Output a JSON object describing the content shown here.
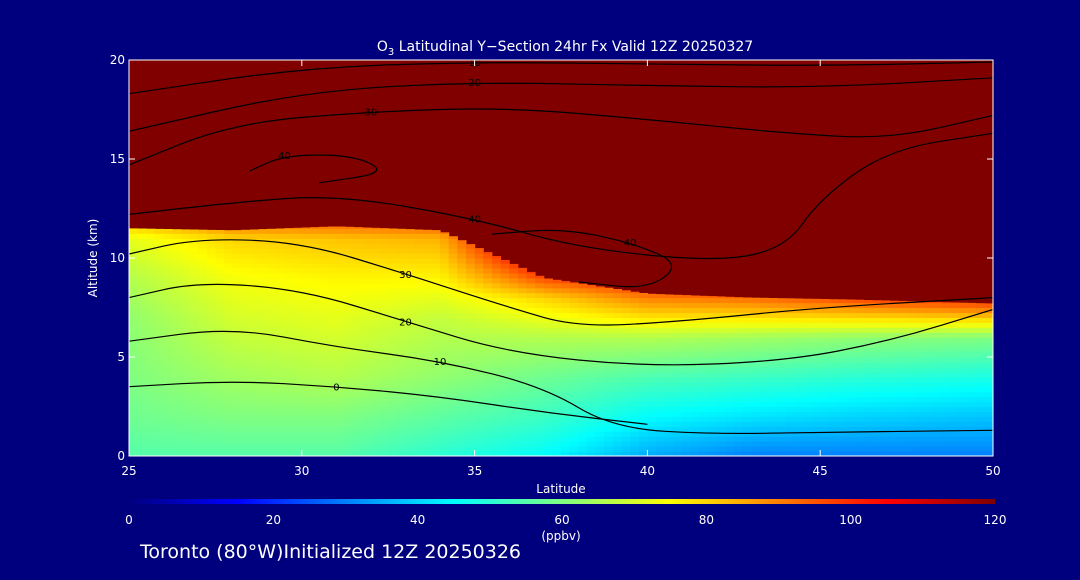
{
  "title": "O3 Latitudinal Y-Section 24hr  Fx Valid 12Z 20250327",
  "title_parts": {
    "main": "O",
    "sub": "3",
    "rest": " Latitudinal Y−Section 24hr  Fx Valid 12Z 20250327"
  },
  "footer": "Toronto (80°W)Initialized 12Z 20250326",
  "colors": {
    "background": "#00007f",
    "text": "#ffffff",
    "contour": "#000000",
    "plot_frame": "#ffffff"
  },
  "chart_data": {
    "type": "heatmap",
    "title": "O3 Latitudinal Y-Section 24hr  Fx Valid 12Z 20250327",
    "xlabel": "Latitude",
    "ylabel": "Altitude (km)",
    "xlim": [
      25,
      50
    ],
    "ylim": [
      0,
      20
    ],
    "x_ticks": [
      25,
      30,
      35,
      40,
      45,
      50
    ],
    "y_ticks": [
      0,
      5,
      10,
      15,
      20
    ],
    "colorbar": {
      "min": 0,
      "max": 120,
      "ticks": [
        0,
        20,
        40,
        60,
        80,
        100,
        120
      ],
      "unit": "(ppbv)",
      "colormap": [
        "#00007f",
        "#0000ff",
        "#0080ff",
        "#00ffff",
        "#80ff80",
        "#ffff00",
        "#ff8000",
        "#ff0000",
        "#800000"
      ]
    },
    "surface_ozone_field": {
      "x": [
        25,
        28,
        31,
        34,
        37,
        40,
        43,
        46,
        50
      ],
      "columns": [
        {
          "lat": 25,
          "top_km": 11.5,
          "levels": [
            [
              0,
              55
            ],
            [
              2,
              58
            ],
            [
              4,
              60
            ],
            [
              7,
              62
            ],
            [
              9,
              66
            ],
            [
              11,
              72
            ]
          ]
        },
        {
          "lat": 28,
          "top_km": 11.4,
          "levels": [
            [
              0,
              55
            ],
            [
              2,
              60
            ],
            [
              4,
              64
            ],
            [
              7,
              70
            ],
            [
              9,
              74
            ],
            [
              11,
              80
            ]
          ]
        },
        {
          "lat": 31,
          "top_km": 11.6,
          "levels": [
            [
              0,
              55
            ],
            [
              2,
              60
            ],
            [
              4,
              66
            ],
            [
              7,
              72
            ],
            [
              9,
              76
            ],
            [
              11,
              82
            ]
          ]
        },
        {
          "lat": 34,
          "top_km": 11.4,
          "levels": [
            [
              0,
              50
            ],
            [
              2,
              56
            ],
            [
              4,
              62
            ],
            [
              7,
              68
            ],
            [
              9,
              76
            ],
            [
              11,
              84
            ]
          ]
        },
        {
          "lat": 37,
          "top_km": 9.0,
          "levels": [
            [
              0,
              45
            ],
            [
              2,
              52
            ],
            [
              4,
              58
            ],
            [
              6,
              66
            ],
            [
              8,
              80
            ],
            [
              9,
              96
            ]
          ]
        },
        {
          "lat": 40,
          "top_km": 8.2,
          "levels": [
            [
              0,
              35
            ],
            [
              2,
              45
            ],
            [
              4,
              54
            ],
            [
              6,
              66
            ],
            [
              8,
              90
            ]
          ]
        },
        {
          "lat": 43,
          "top_km": 8.0,
          "levels": [
            [
              0,
              30
            ],
            [
              2,
              42
            ],
            [
              4,
              52
            ],
            [
              6,
              64
            ],
            [
              8,
              92
            ]
          ]
        },
        {
          "lat": 46,
          "top_km": 7.9,
          "levels": [
            [
              0,
              30
            ],
            [
              2,
              40
            ],
            [
              4,
              50
            ],
            [
              6,
              62
            ],
            [
              7.9,
              95
            ]
          ]
        },
        {
          "lat": 50,
          "top_km": 7.7,
          "levels": [
            [
              0,
              30
            ],
            [
              2,
              38
            ],
            [
              4,
              48
            ],
            [
              6,
              60
            ],
            [
              7.7,
              96
            ]
          ]
        }
      ]
    },
    "contours": [
      {
        "label": "0",
        "points": [
          [
            25,
            3.5
          ],
          [
            28,
            3.8
          ],
          [
            31,
            3.5
          ],
          [
            34,
            3.0
          ],
          [
            37,
            2.2
          ],
          [
            40,
            1.6
          ]
        ]
      },
      {
        "label": "10",
        "points": [
          [
            25,
            5.8
          ],
          [
            28,
            6.5
          ],
          [
            31,
            5.5
          ],
          [
            34,
            4.8
          ],
          [
            37,
            3.5
          ],
          [
            39,
            1.4
          ],
          [
            42,
            1.1
          ],
          [
            45,
            1.2
          ],
          [
            50,
            1.3
          ]
        ]
      },
      {
        "label": "20",
        "points": [
          [
            25,
            8.0
          ],
          [
            27,
            8.8
          ],
          [
            30,
            8.4
          ],
          [
            33,
            6.8
          ],
          [
            36,
            5.2
          ],
          [
            40,
            4.5
          ],
          [
            44,
            4.8
          ],
          [
            47,
            5.8
          ],
          [
            50,
            7.4
          ]
        ]
      },
      {
        "label": "30",
        "points": [
          [
            25,
            10.2
          ],
          [
            27,
            11.0
          ],
          [
            30,
            10.8
          ],
          [
            33,
            9.2
          ],
          [
            36,
            7.5
          ],
          [
            38,
            6.5
          ],
          [
            41,
            6.8
          ],
          [
            45,
            7.5
          ],
          [
            50,
            8.0
          ]
        ]
      },
      {
        "label": "40",
        "points": [
          [
            25,
            12.2
          ],
          [
            28,
            12.8
          ],
          [
            31,
            13.2
          ],
          [
            35,
            12.0
          ],
          [
            38,
            10.5
          ],
          [
            42,
            9.8
          ],
          [
            44,
            10.5
          ],
          [
            45,
            13.0
          ],
          [
            47,
            15.5
          ],
          [
            50,
            16.3
          ]
        ]
      },
      {
        "label": "40",
        "points": [
          [
            35.5,
            11.2
          ],
          [
            37.5,
            11.5
          ],
          [
            39.5,
            10.8
          ],
          [
            41,
            9.7
          ],
          [
            40,
            8.4
          ],
          [
            38,
            8.8
          ]
        ]
      },
      {
        "label": "40",
        "points": [
          [
            28.5,
            14.4
          ],
          [
            29.5,
            15.2
          ],
          [
            31.5,
            15.2
          ],
          [
            32.5,
            14.3
          ],
          [
            30.5,
            13.8
          ]
        ]
      },
      {
        "label": "30",
        "points": [
          [
            25,
            14.7
          ],
          [
            28,
            16.8
          ],
          [
            32,
            17.4
          ],
          [
            36,
            17.6
          ],
          [
            40,
            17.0
          ],
          [
            44,
            16.3
          ],
          [
            47,
            16.0
          ],
          [
            50,
            17.2
          ]
        ]
      },
      {
        "label": "20",
        "points": [
          [
            25,
            16.4
          ],
          [
            30,
            18.4
          ],
          [
            35,
            18.9
          ],
          [
            40,
            18.7
          ],
          [
            45,
            18.6
          ],
          [
            50,
            19.1
          ]
        ]
      },
      {
        "label": "10",
        "points": [
          [
            25,
            18.3
          ],
          [
            30,
            19.6
          ],
          [
            35,
            19.9
          ],
          [
            40,
            19.8
          ],
          [
            45,
            19.7
          ],
          [
            50,
            19.9
          ]
        ]
      }
    ],
    "contour_labels": [
      "10",
      "20",
      "30",
      "40",
      "0"
    ]
  }
}
